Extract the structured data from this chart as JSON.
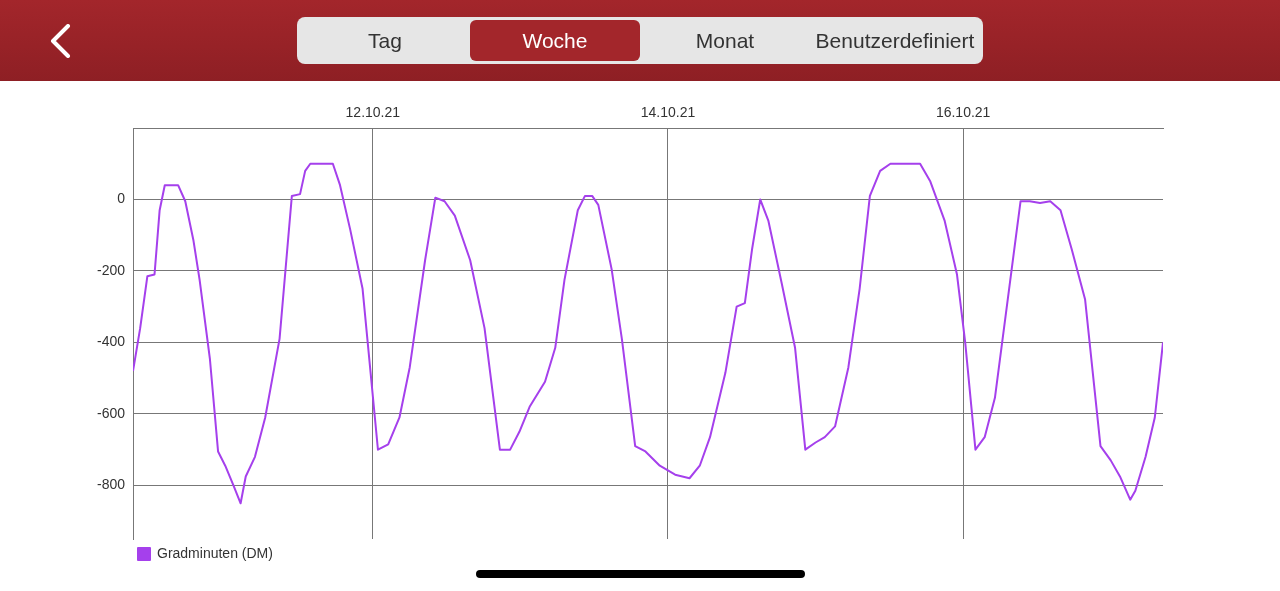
{
  "chart_data": {
    "type": "line",
    "annotations": [
      "Tag",
      "Woche",
      "Monat",
      "Benutzerdefiniert"
    ],
    "x": [
      "--10-10T09:00",
      "--10-10T10:10",
      "--10-10T11:20",
      "--10-10T12:30",
      "--10-10T13:20",
      "--10-10T14:10",
      "--10-10T16:20",
      "--10-10T17:30",
      "--10-10T18:50",
      "--10-10T19:50",
      "--10-10T21:30",
      "--10-10T22:50",
      "--10-11T00:00",
      "--10-11T01:20",
      "--10-11T02:30",
      "--10-11T03:20",
      "--10-11T04:50",
      "--10-11T06:30",
      "--10-11T08:50",
      "--10-11T10:50",
      "--10-11T12:10",
      "--10-11T13:00",
      "--10-11T13:50",
      "--10-11T17:30",
      "--10-11T18:40",
      "--10-11T20:20",
      "--10-11T22:20",
      "--10-12T00:50",
      "--10-12T02:30",
      "--10-12T04:20",
      "--10-12T06:00",
      "--10-12T08:30",
      "--10-12T10:10",
      "--10-12T11:40",
      "--10-12T13:20",
      "--10-12T15:50",
      "--10-12T18:10",
      "--10-12T20:40",
      "--10-12T22:20",
      "--10-12T23:50",
      "--10-13T01:30",
      "--10-13T04:00",
      "--10-13T05:40",
      "--10-13T07:10",
      "--10-13T09:20",
      "--10-13T10:30",
      "--10-13T11:40",
      "--10-13T12:40",
      "--10-13T14:50",
      "--10-13T16:30",
      "--10-13T18:40",
      "--10-13T20:20",
      "--10-13T22:40",
      "--10-14T01:10",
      "--10-14T03:30",
      "--10-14T05:10",
      "--10-14T06:50",
      "--10-14T09:20",
      "--10-14T11:10",
      "--10-14T12:30",
      "--10-14T13:40",
      "--10-14T15:00",
      "--10-14T16:20",
      "--10-14T18:30",
      "--10-14T20:40",
      "--10-14T22:20",
      "--10-15T00:00",
      "--10-15T01:30",
      "--10-15T03:10",
      "--10-15T05:20",
      "--10-15T07:10",
      "--10-15T08:50",
      "--10-15T10:30",
      "--10-15T12:10",
      "--10-15T17:00",
      "--10-15T18:40",
      "--10-15T21:00",
      "--10-15T23:00",
      "--10-16T00:20",
      "--10-16T02:00",
      "--10-16T03:30",
      "--10-16T05:10",
      "--10-16T07:40",
      "--10-16T09:20",
      "--10-16T10:50",
      "--10-16T12:30",
      "--10-16T14:10",
      "--10-16T15:50",
      "--10-16T17:40",
      "--10-16T19:50",
      "--10-16T22:20",
      "--10-17T00:00",
      "--10-17T01:30",
      "--10-17T03:10",
      "--10-17T04:00",
      "--10-17T05:40",
      "--10-17T07:10",
      "--10-17T08:30"
    ],
    "series": [
      {
        "name": "Gradminuten (DM)",
        "color": "#a540ec",
        "values": [
          -480,
          -360,
          -215,
          -210,
          -30,
          40,
          40,
          -5,
          -115,
          -225,
          -445,
          -705,
          -745,
          -800,
          -850,
          -775,
          -720,
          -610,
          -390,
          10,
          15,
          80,
          100,
          100,
          40,
          -85,
          -250,
          -700,
          -685,
          -610,
          -470,
          -170,
          5,
          -5,
          -45,
          -170,
          -360,
          -700,
          -700,
          -650,
          -580,
          -510,
          -415,
          -225,
          -30,
          10,
          10,
          -15,
          -195,
          -390,
          -690,
          -705,
          -745,
          -770,
          -780,
          -745,
          -665,
          -485,
          -300,
          -290,
          -140,
          0,
          -60,
          -235,
          -415,
          -700,
          -680,
          -665,
          -635,
          -470,
          -250,
          10,
          80,
          100,
          100,
          50,
          -60,
          -210,
          -400,
          -700,
          -665,
          -555,
          -225,
          -5,
          -5,
          -10,
          -5,
          -30,
          -140,
          -280,
          -690,
          -730,
          -775,
          -840,
          -815,
          -720,
          -610,
          -400
        ]
      }
    ],
    "xlim": [
      "--10-10T09:00",
      "--10-17T08:30"
    ],
    "xticks": [
      {
        "value": "--10-12",
        "label": "12.10.21"
      },
      {
        "value": "--10-14",
        "label": "14.10.21"
      },
      {
        "value": "--10-16",
        "label": "16.10.21"
      }
    ],
    "ylim": [
      -950,
      200
    ],
    "yticks": [
      -800,
      -600,
      -400,
      -200,
      0
    ],
    "grid": true,
    "legend": "bottom left"
  }
}
